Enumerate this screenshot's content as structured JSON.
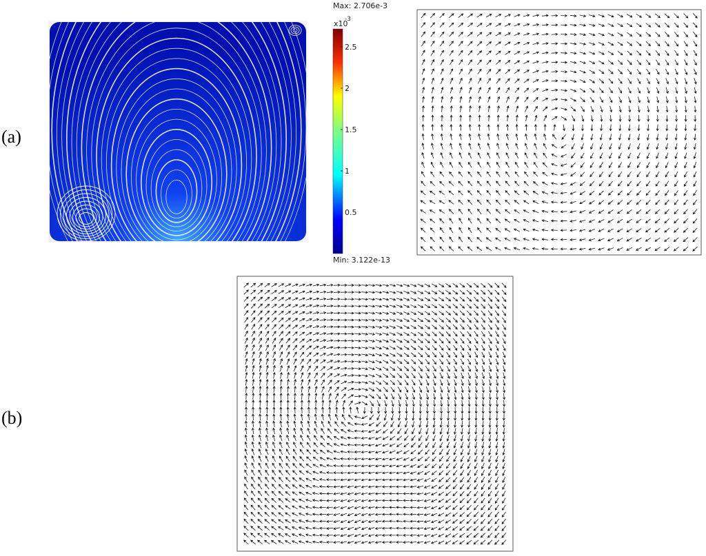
{
  "panels": [
    {
      "label": "(a)",
      "colorbar": {
        "max_label": "Max: 2.706e-3",
        "min_label": "Min: 3.122e-13",
        "multiplier": "x10",
        "exponent": "-3",
        "ticks": [
          "0.5",
          "1",
          "1.5",
          "2",
          "2.5"
        ]
      }
    },
    {
      "label": "(b)"
    }
  ]
}
